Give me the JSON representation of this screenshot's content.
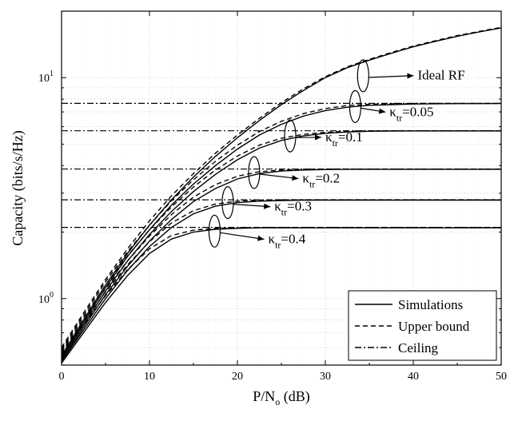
{
  "chart_data": {
    "type": "line",
    "xlabel_main": "P/N",
    "xlabel_sub": "o",
    "xlabel_tail": " (dB)",
    "ylabel": "Capacity (bits/s/Hz)",
    "yscale": "log",
    "xlim": [
      0,
      50
    ],
    "ylim": [
      0.5,
      20
    ],
    "x_ticks": [
      0,
      10,
      20,
      30,
      40,
      50
    ],
    "y_ticks": [
      {
        "value": 1,
        "base": "10",
        "exp": "0"
      },
      {
        "value": 10,
        "base": "10",
        "exp": "1"
      }
    ],
    "grid": true,
    "legend_position": "bottom-right",
    "legend": [
      {
        "label": "Simulations",
        "style": "solid"
      },
      {
        "label": "Upper bound",
        "style": "dashed"
      },
      {
        "label": "Ceiling",
        "style": "dashdot"
      }
    ],
    "x": [
      0,
      2.5,
      5,
      7.5,
      10,
      12.5,
      15,
      17.5,
      20,
      22.5,
      25,
      27.5,
      30,
      32.5,
      35,
      37.5,
      40,
      42.5,
      45,
      47.5,
      50
    ],
    "series": [
      {
        "group": "Ideal RF",
        "style": "solid",
        "values": [
          0.55,
          0.8,
          1.15,
          1.6,
          2.15,
          2.8,
          3.55,
          4.4,
          5.35,
          6.4,
          7.55,
          8.75,
          10.0,
          11.1,
          12.0,
          12.9,
          13.8,
          14.6,
          15.4,
          16.1,
          16.8
        ]
      },
      {
        "group": "Ideal RF",
        "style": "dashed",
        "values": [
          0.6,
          0.86,
          1.22,
          1.68,
          2.25,
          2.92,
          3.68,
          4.55,
          5.5,
          6.55,
          7.7,
          8.9,
          10.1,
          11.2,
          12.1,
          13.0,
          13.9,
          14.7,
          15.5,
          16.2,
          16.9
        ]
      },
      {
        "group": "κtr=0.05",
        "style": "solid",
        "values": [
          0.54,
          0.78,
          1.12,
          1.55,
          2.05,
          2.65,
          3.3,
          4.0,
          4.75,
          5.5,
          6.15,
          6.7,
          7.1,
          7.35,
          7.5,
          7.55,
          7.6,
          7.62,
          7.63,
          7.63,
          7.64
        ]
      },
      {
        "group": "κtr=0.05",
        "style": "dashed",
        "values": [
          0.59,
          0.84,
          1.19,
          1.63,
          2.15,
          2.77,
          3.45,
          4.18,
          4.95,
          5.7,
          6.35,
          6.88,
          7.25,
          7.48,
          7.58,
          7.62,
          7.64,
          7.65,
          7.65,
          7.65,
          7.65
        ]
      },
      {
        "group": "κtr=0.1",
        "style": "solid",
        "values": [
          0.53,
          0.76,
          1.08,
          1.48,
          1.95,
          2.48,
          3.05,
          3.65,
          4.25,
          4.8,
          5.2,
          5.45,
          5.6,
          5.68,
          5.72,
          5.73,
          5.74,
          5.74,
          5.74,
          5.74,
          5.74
        ]
      },
      {
        "group": "κtr=0.1",
        "style": "dashed",
        "values": [
          0.58,
          0.82,
          1.15,
          1.56,
          2.05,
          2.6,
          3.2,
          3.82,
          4.42,
          4.95,
          5.32,
          5.54,
          5.66,
          5.72,
          5.74,
          5.75,
          5.75,
          5.75,
          5.75,
          5.75,
          5.75
        ]
      },
      {
        "group": "κtr=0.2",
        "style": "solid",
        "values": [
          0.52,
          0.74,
          1.04,
          1.4,
          1.82,
          2.28,
          2.75,
          3.15,
          3.48,
          3.68,
          3.78,
          3.82,
          3.84,
          3.85,
          3.85,
          3.85,
          3.85,
          3.85,
          3.85,
          3.85,
          3.85
        ]
      },
      {
        "group": "κtr=0.2",
        "style": "dashed",
        "values": [
          0.57,
          0.8,
          1.11,
          1.48,
          1.92,
          2.4,
          2.88,
          3.28,
          3.58,
          3.75,
          3.82,
          3.85,
          3.86,
          3.86,
          3.86,
          3.86,
          3.86,
          3.86,
          3.86,
          3.86,
          3.86
        ]
      },
      {
        "group": "κtr=0.3",
        "style": "solid",
        "values": [
          0.52,
          0.72,
          1.0,
          1.34,
          1.72,
          2.1,
          2.42,
          2.62,
          2.72,
          2.76,
          2.78,
          2.79,
          2.79,
          2.79,
          2.79,
          2.79,
          2.79,
          2.79,
          2.79,
          2.79,
          2.79
        ]
      },
      {
        "group": "κtr=0.3",
        "style": "dashed",
        "values": [
          0.56,
          0.78,
          1.07,
          1.42,
          1.81,
          2.2,
          2.5,
          2.68,
          2.76,
          2.79,
          2.8,
          2.8,
          2.8,
          2.8,
          2.8,
          2.8,
          2.8,
          2.8,
          2.8,
          2.8,
          2.8
        ]
      },
      {
        "group": "κtr=0.4",
        "style": "solid",
        "values": [
          0.51,
          0.7,
          0.96,
          1.27,
          1.6,
          1.86,
          2.0,
          2.06,
          2.08,
          2.09,
          2.09,
          2.09,
          2.09,
          2.09,
          2.09,
          2.09,
          2.09,
          2.09,
          2.09,
          2.09,
          2.09
        ]
      },
      {
        "group": "κtr=0.4",
        "style": "dashed",
        "values": [
          0.55,
          0.76,
          1.03,
          1.35,
          1.68,
          1.93,
          2.04,
          2.08,
          2.09,
          2.1,
          2.1,
          2.1,
          2.1,
          2.1,
          2.1,
          2.1,
          2.1,
          2.1,
          2.1,
          2.1,
          2.1
        ]
      }
    ],
    "ceilings": [
      {
        "group": "κtr=0.05",
        "value": 7.65
      },
      {
        "group": "κtr=0.1",
        "value": 5.75
      },
      {
        "group": "κtr=0.2",
        "value": 3.86
      },
      {
        "group": "κtr=0.3",
        "value": 2.8
      },
      {
        "group": "κtr=0.4",
        "value": 2.1
      }
    ],
    "annotations": [
      {
        "main": "Ideal RF",
        "sub": "",
        "tail": "",
        "ellipse_x": 34.3,
        "ellipse_y": 10.2,
        "label_x": 40.5,
        "label_y": 9.8
      },
      {
        "main": "κ",
        "sub": "tr",
        "tail": "=0.05",
        "ellipse_x": 33.4,
        "ellipse_y": 7.4,
        "label_x": 37.3,
        "label_y": 6.7
      },
      {
        "main": "κ",
        "sub": "tr",
        "tail": "=0.1",
        "ellipse_x": 26.0,
        "ellipse_y": 5.45,
        "label_x": 30.0,
        "label_y": 5.15
      },
      {
        "main": "κ",
        "sub": "tr",
        "tail": "=0.2",
        "ellipse_x": 21.9,
        "ellipse_y": 3.72,
        "label_x": 27.4,
        "label_y": 3.35
      },
      {
        "main": "κ",
        "sub": "tr",
        "tail": "=0.3",
        "ellipse_x": 18.9,
        "ellipse_y": 2.72,
        "label_x": 24.2,
        "label_y": 2.5
      },
      {
        "main": "κ",
        "sub": "tr",
        "tail": "=0.4",
        "ellipse_x": 17.4,
        "ellipse_y": 2.02,
        "label_x": 23.5,
        "label_y": 1.78
      }
    ]
  }
}
